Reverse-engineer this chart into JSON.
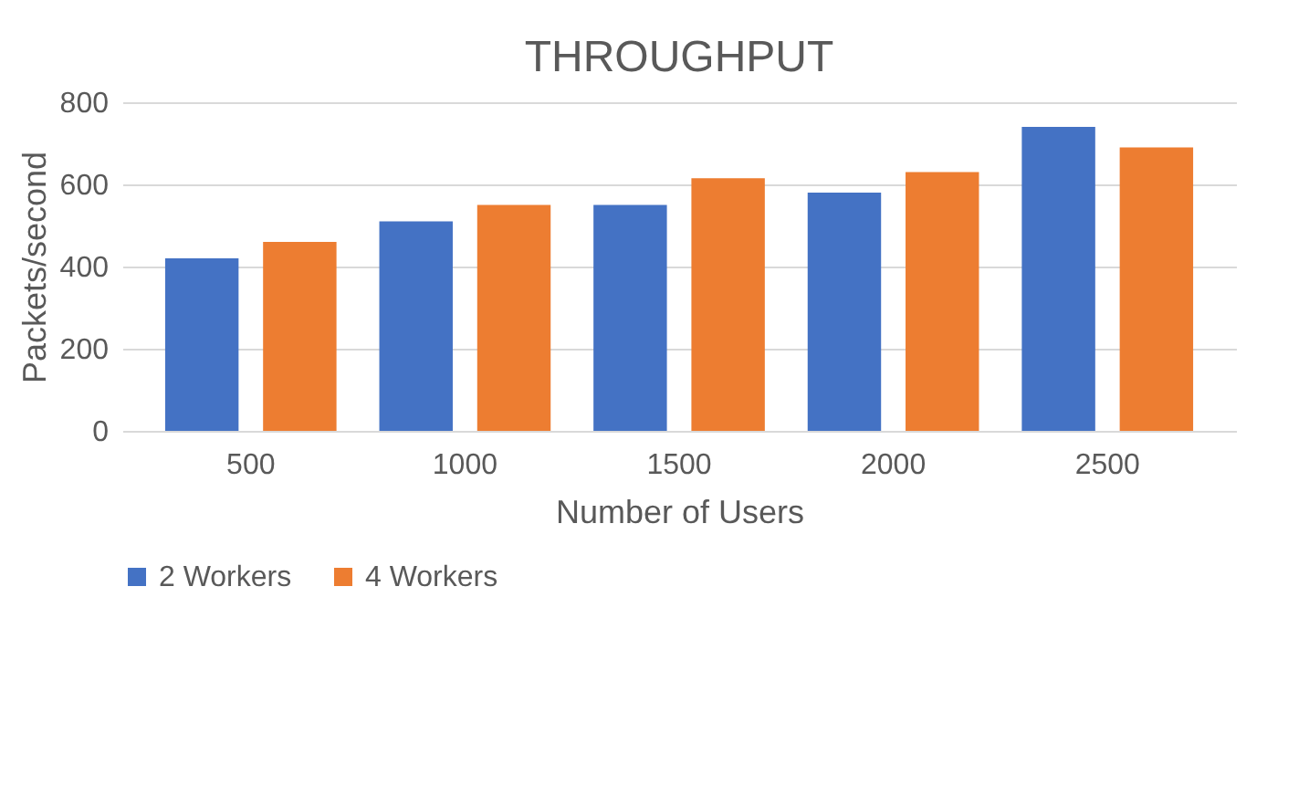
{
  "chart_data": {
    "type": "bar",
    "title": "THROUGHPUT",
    "xlabel": "Number of Users",
    "ylabel": "Packets/second",
    "categories": [
      "500",
      "1000",
      "1500",
      "2000",
      "2500"
    ],
    "series": [
      {
        "name": "2 Workers",
        "color": "#4472c4",
        "values": [
          420,
          510,
          550,
          580,
          740
        ]
      },
      {
        "name": "4 Workers",
        "color": "#ed7d31",
        "values": [
          460,
          550,
          615,
          630,
          690
        ]
      }
    ],
    "ylim": [
      0,
      800
    ],
    "yticks": [
      0,
      200,
      400,
      600,
      800
    ],
    "grid": "y",
    "legend": "bottom"
  }
}
